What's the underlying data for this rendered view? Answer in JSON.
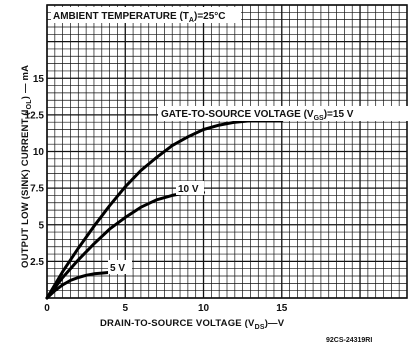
{
  "chart_data": {
    "type": "line",
    "title": "AMBIENT TEMPERATURE (T",
    "title_sub": "A",
    "title_tail": ")=25°C",
    "ylabel": "OUTPUT LOW (SINK) CURRENT (I",
    "ylabel_sub": "OL",
    "ylabel_tail": ") — mA",
    "xlabel": "DRAIN-TO-SOURCE VOLTAGE (V",
    "xlabel_sub": "DS",
    "xlabel_tail": ")—V",
    "figure_number": "92CS-24319RI",
    "xlim": [
      0,
      23
    ],
    "ylim": [
      0,
      20
    ],
    "x_ticks": [
      {
        "value": 0,
        "label": "0"
      },
      {
        "value": 5,
        "label": "5"
      },
      {
        "value": 10,
        "label": "10"
      },
      {
        "value": 15,
        "label": "15"
      }
    ],
    "y_ticks": [
      {
        "value": 2.5,
        "label": "2.5"
      },
      {
        "value": 5,
        "label": "5"
      },
      {
        "value": 7.5,
        "label": "7.5"
      },
      {
        "value": 10,
        "label": "10"
      },
      {
        "value": 12.5,
        "label": "12.5"
      },
      {
        "value": 15,
        "label": "15"
      }
    ],
    "grid": true,
    "series": [
      {
        "name": "GATE-TO-SOURCE VOLTAGE (V",
        "name_sub": "GS",
        "name_tail": ")=15 V",
        "x": [
          0,
          1,
          2,
          3,
          4,
          5,
          6,
          7,
          8,
          9,
          10,
          11,
          12,
          13,
          14,
          15
        ],
        "y": [
          0,
          1.8,
          3.4,
          4.9,
          6.3,
          7.6,
          8.7,
          9.6,
          10.4,
          11.0,
          11.5,
          11.8,
          12.0,
          12.1,
          12.1,
          12.1
        ]
      },
      {
        "name": "10 V",
        "x": [
          0,
          1,
          2,
          3,
          4,
          5,
          6,
          7,
          8,
          9,
          10
        ],
        "y": [
          0,
          1.4,
          2.6,
          3.7,
          4.7,
          5.5,
          6.2,
          6.7,
          7.0,
          7.2,
          7.2
        ]
      },
      {
        "name": "5 V",
        "x": [
          0,
          0.5,
          1,
          1.5,
          2,
          2.5,
          3,
          3.5,
          4,
          4.5,
          5
        ],
        "y": [
          0,
          0.5,
          0.9,
          1.2,
          1.4,
          1.55,
          1.65,
          1.7,
          1.75,
          1.75,
          1.75
        ]
      }
    ]
  }
}
